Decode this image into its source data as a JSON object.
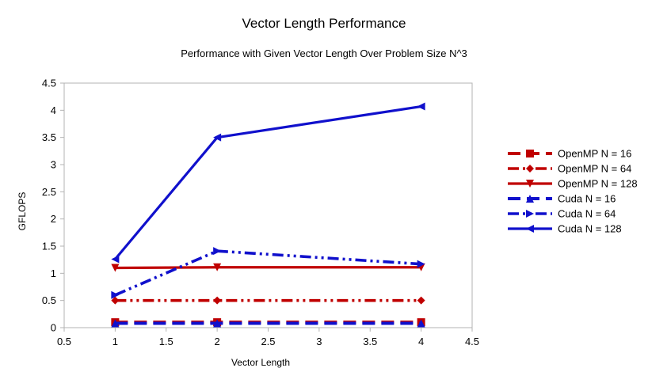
{
  "chart_data": {
    "type": "line",
    "title": "Vector Length Performance",
    "subtitle": "Performance with Given Vector Length Over Problem Size N^3",
    "xlabel": "Vector Length",
    "ylabel": "GFLOPS",
    "xlim": [
      0.5,
      4.5
    ],
    "ylim": [
      0,
      4.5
    ],
    "xticks": [
      "0.5",
      "1",
      "1.5",
      "2",
      "2.5",
      "3",
      "3.5",
      "4",
      "4.5"
    ],
    "yticks": [
      "0",
      "0.5",
      "1",
      "1.5",
      "2",
      "2.5",
      "3",
      "3.5",
      "4",
      "4.5"
    ],
    "grid": false,
    "legend_position": "right",
    "x": [
      1,
      2,
      4
    ],
    "series": [
      {
        "name": "OpenMP N = 16",
        "values": [
          0.1,
          0.1,
          0.1
        ],
        "color": "#c00000",
        "dash": "long-dash",
        "marker": "square"
      },
      {
        "name": "OpenMP N = 64",
        "values": [
          0.5,
          0.5,
          0.5
        ],
        "color": "#c00000",
        "dash": "dash-dot-dot",
        "marker": "diamond"
      },
      {
        "name": "OpenMP N = 128",
        "values": [
          1.1,
          1.11,
          1.11
        ],
        "color": "#c00000",
        "dash": "solid",
        "marker": "triangle-down"
      },
      {
        "name": "Cuda N = 16",
        "values": [
          0.08,
          0.08,
          0.08
        ],
        "color": "#1010cc",
        "dash": "long-dash",
        "marker": "triangle-up"
      },
      {
        "name": "Cuda N = 64",
        "values": [
          0.6,
          1.41,
          1.17
        ],
        "color": "#1010cc",
        "dash": "dash-dot-dot",
        "marker": "triangle-right"
      },
      {
        "name": "Cuda N = 128",
        "values": [
          1.26,
          3.5,
          4.07
        ],
        "color": "#1010cc",
        "dash": "solid",
        "marker": "triangle-left"
      }
    ]
  }
}
